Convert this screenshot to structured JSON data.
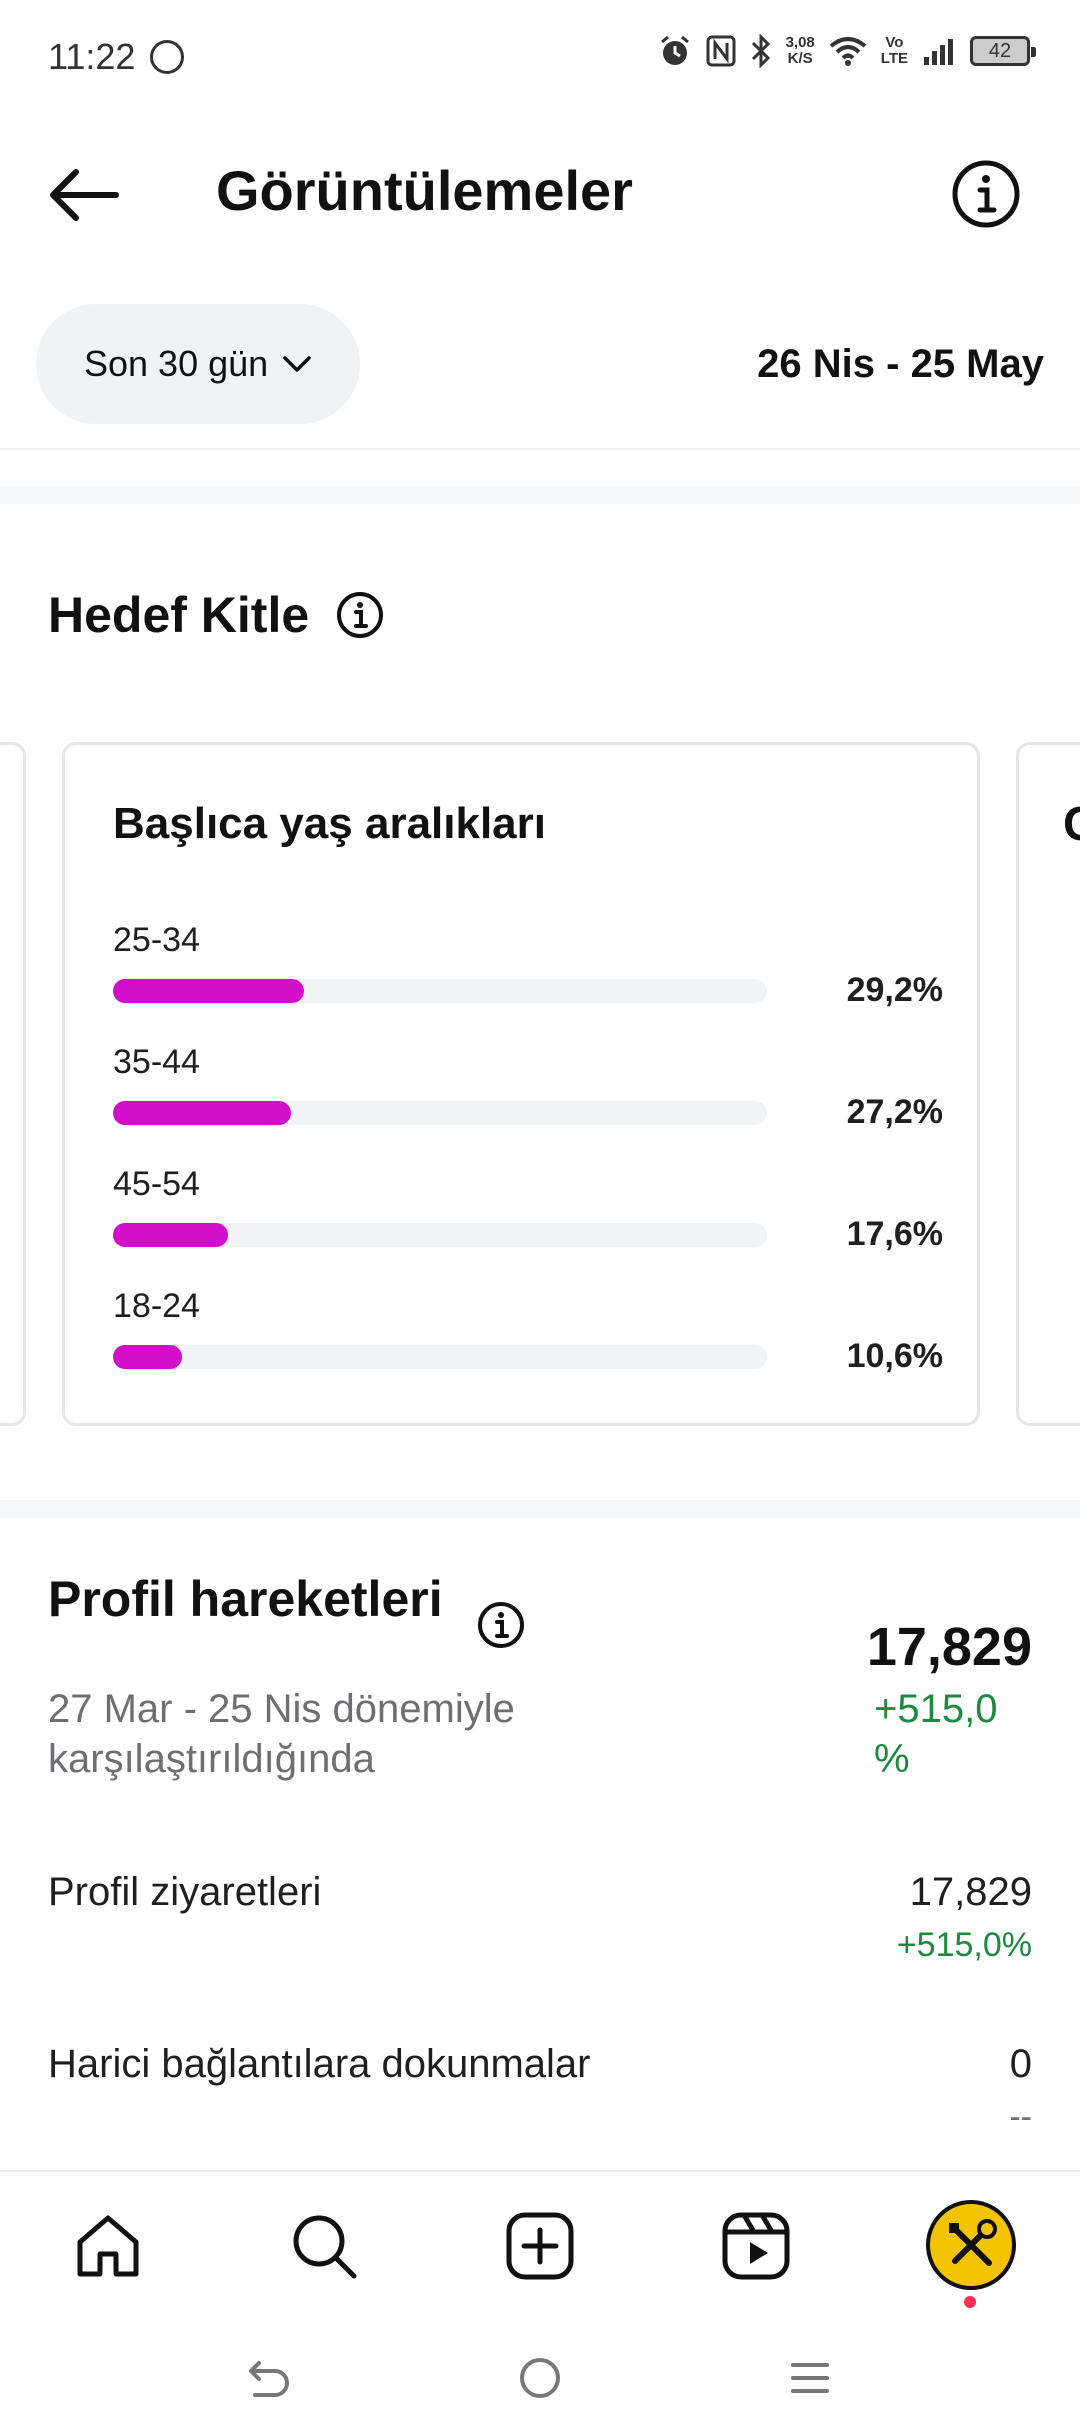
{
  "status_bar": {
    "time": "11:22",
    "net_speed_value": "3,08",
    "net_speed_unit": "K/S",
    "volte_top": "Vo",
    "volte_bottom": "LTE",
    "battery": "42"
  },
  "header": {
    "title": "Görüntülemeler"
  },
  "filter": {
    "period_label": "Son 30 gün",
    "date_range": "26 Nis - 25 May"
  },
  "audience": {
    "title": "Hedef Kitle",
    "next_card_peek": "C",
    "card": {
      "title": "Başlıca yaş aralıkları",
      "rows": [
        {
          "label": "25-34",
          "value_text": "29,2%",
          "value": 29.2
        },
        {
          "label": "35-44",
          "value_text": "27,2%",
          "value": 27.2
        },
        {
          "label": "45-54",
          "value_text": "17,6%",
          "value": 17.6
        },
        {
          "label": "18-24",
          "value_text": "10,6%",
          "value": 10.6
        }
      ]
    }
  },
  "profile_actions": {
    "title": "Profil hareketleri",
    "comparison_text": "27 Mar - 25 Nis dönemiyle karşılaştırıldığında",
    "total": "17,829",
    "total_change": "+515,0 %",
    "metrics": [
      {
        "label": "Profil ziyaretleri",
        "value": "17,829",
        "change": "+515,0%"
      },
      {
        "label": "Harici bağlantılara dokunmalar",
        "value": "0",
        "change": "--"
      }
    ]
  },
  "colors": {
    "bar_fill": "#d20ec8",
    "positive": "#1c8a3f",
    "avatar_bg": "#f5c400"
  },
  "icons": {
    "back": "arrow-left-icon",
    "info": "info-circle-icon",
    "dropdown": "chevron-down-icon",
    "home": "home-icon",
    "search": "search-icon",
    "create": "plus-square-icon",
    "reels": "reels-icon",
    "profile": "avatar-tools-icon"
  }
}
